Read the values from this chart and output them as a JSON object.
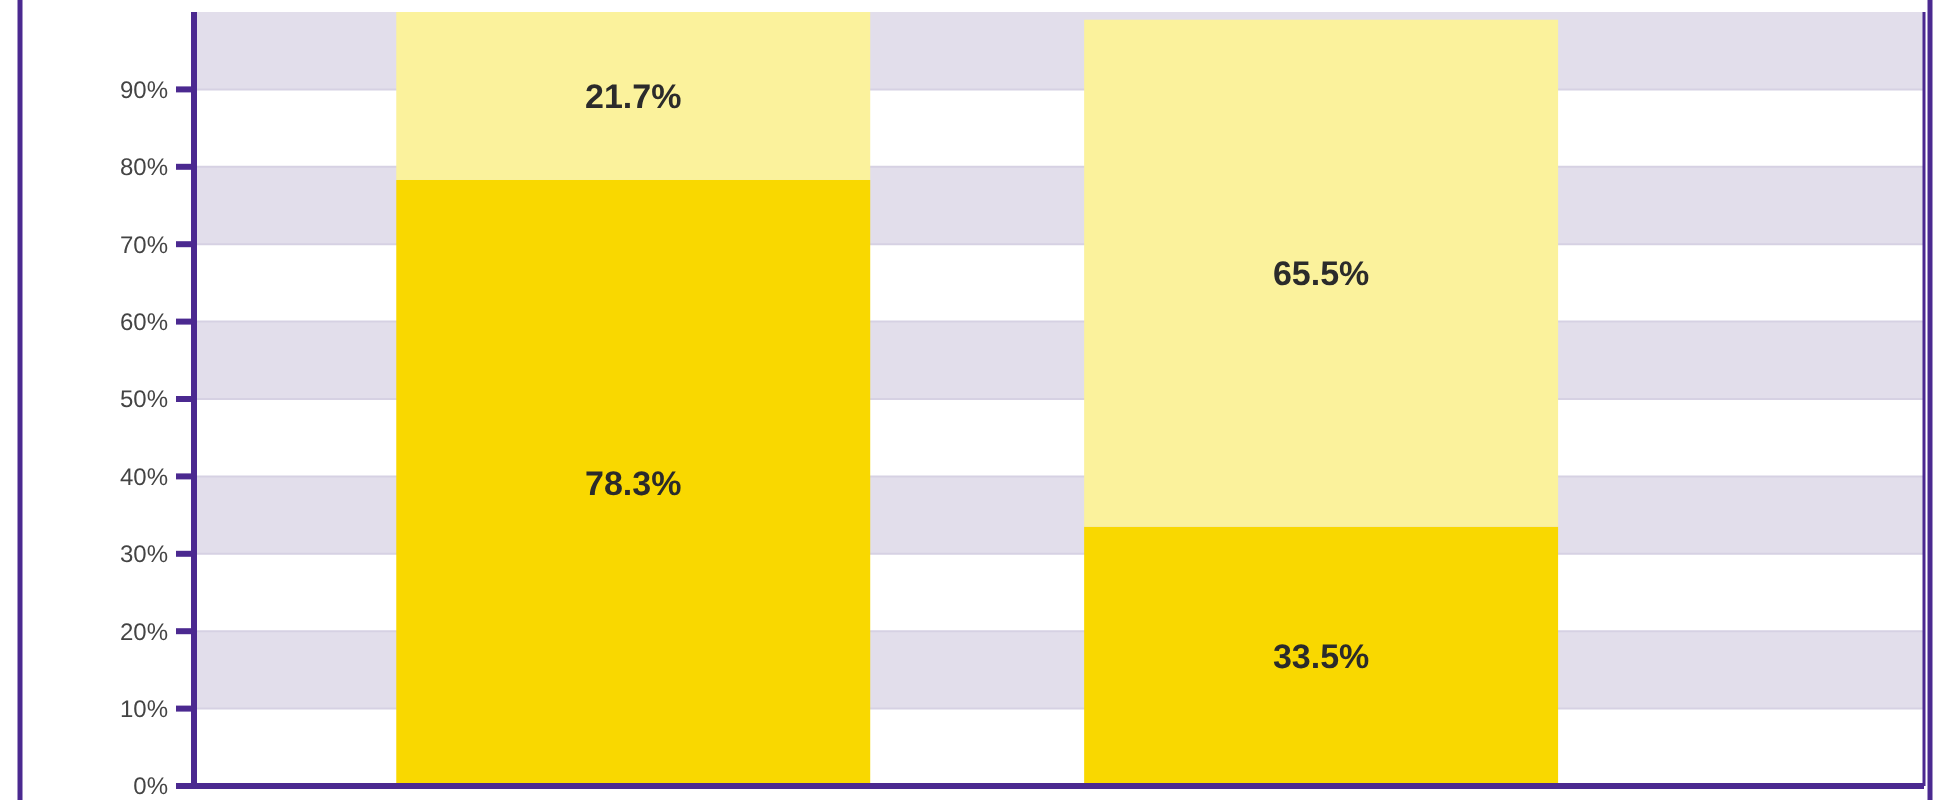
{
  "chart_data": {
    "type": "bar",
    "stacked": true,
    "categories": [
      null,
      null
    ],
    "series": [
      {
        "color": "#f9d800",
        "values": [
          78.3,
          33.5
        ],
        "value_labels": [
          "78.3%",
          "33.5%"
        ]
      },
      {
        "color": "#fbf29c",
        "values": [
          21.7,
          65.5
        ],
        "value_labels": [
          "21.7%",
          "65.5%"
        ]
      }
    ],
    "ylim": [
      0,
      100
    ],
    "yticks": [
      {
        "value": 0,
        "label": "0%"
      },
      {
        "value": 10,
        "label": "10%"
      },
      {
        "value": 20,
        "label": "20%"
      },
      {
        "value": 30,
        "label": "30%"
      },
      {
        "value": 40,
        "label": "40%"
      },
      {
        "value": 50,
        "label": "50%"
      },
      {
        "value": 60,
        "label": "60%"
      },
      {
        "value": 70,
        "label": "70%"
      },
      {
        "value": 80,
        "label": "80%"
      },
      {
        "value": 90,
        "label": "90%"
      }
    ],
    "grid": "y"
  }
}
